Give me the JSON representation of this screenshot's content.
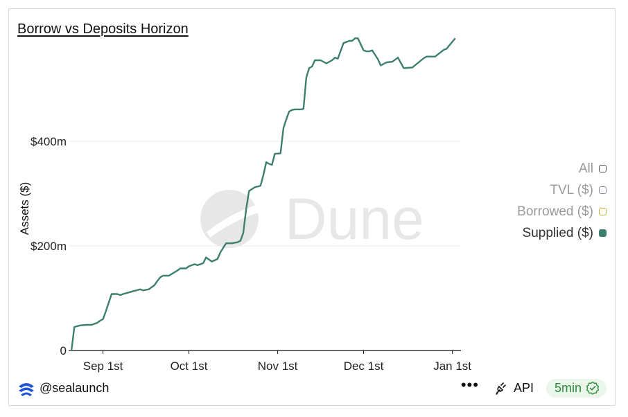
{
  "author": "@sealaunch",
  "footer": {
    "menu_label": "•••",
    "api_label": "API",
    "refresh_label": "5min"
  },
  "watermark": "Dune",
  "legend": [
    {
      "label": "All",
      "color": "#9a9a9a",
      "box_color": "#555555",
      "filled": false
    },
    {
      "label": "TVL ($)",
      "color": "#9a9a9a",
      "box_color": "#8a8a9a",
      "filled": false
    },
    {
      "label": "Borrowed ($)",
      "color": "#9a9a9a",
      "box_color": "#c9b030",
      "filled": false
    },
    {
      "label": "Supplied ($)",
      "color": "#333333",
      "box_color": "#3d7f6e",
      "filled": true
    }
  ],
  "chart_data": {
    "type": "line",
    "title": "Borrow vs Deposits Horizon",
    "xlabel": "",
    "ylabel": "Assets ($)",
    "x_ticks": [
      "Sep 1st",
      "Oct 1st",
      "Nov 1st",
      "Dec 1st",
      "Jan 1st"
    ],
    "y_ticks": [
      "0",
      "$200m",
      "$400m"
    ],
    "y_tick_values": [
      0,
      200,
      400
    ],
    "ylim": [
      0,
      600
    ],
    "x_unit": "days since Sep 1st",
    "xlim": [
      -12,
      125
    ],
    "grid": true,
    "legend_position": "right",
    "series": [
      {
        "name": "Supplied ($)",
        "color": "#3d7f6e",
        "x": [
          -11,
          -10,
          -8,
          -6,
          -4,
          -2,
          -1,
          0,
          1,
          3,
          5,
          6,
          7,
          9,
          11,
          13,
          14,
          16,
          18,
          19,
          20,
          21,
          23,
          26,
          27,
          29,
          30,
          32,
          33,
          35,
          36,
          38,
          40,
          41,
          43,
          45,
          47,
          48,
          49,
          50,
          51,
          53,
          55,
          56,
          57,
          58,
          59,
          60,
          62,
          63,
          64,
          65,
          66,
          67,
          69,
          70,
          71,
          72,
          73,
          74,
          76,
          78,
          80,
          81,
          82,
          84,
          86,
          87,
          88,
          89,
          91,
          92,
          93,
          94,
          96,
          97,
          99,
          101,
          103,
          105,
          108,
          112,
          113,
          116,
          119,
          120,
          123
        ],
        "values": [
          0,
          45,
          48,
          49,
          49,
          53,
          57,
          60,
          75,
          108,
          108,
          106,
          108,
          111,
          114,
          117,
          115,
          117,
          125,
          133,
          140,
          143,
          143,
          153,
          157,
          157,
          161,
          165,
          163,
          167,
          178,
          170,
          175,
          188,
          205,
          205,
          207,
          210,
          225,
          270,
          305,
          312,
          315,
          335,
          360,
          357,
          355,
          376,
          377,
          425,
          442,
          457,
          460,
          461,
          461,
          462,
          522,
          540,
          543,
          555,
          555,
          549,
          555,
          560,
          558,
          588,
          592,
          592,
          597,
          597,
          574,
          572,
          572,
          574,
          557,
          545,
          551,
          552,
          560,
          540,
          541,
          559,
          562,
          562,
          575,
          577,
          597
        ]
      }
    ]
  }
}
